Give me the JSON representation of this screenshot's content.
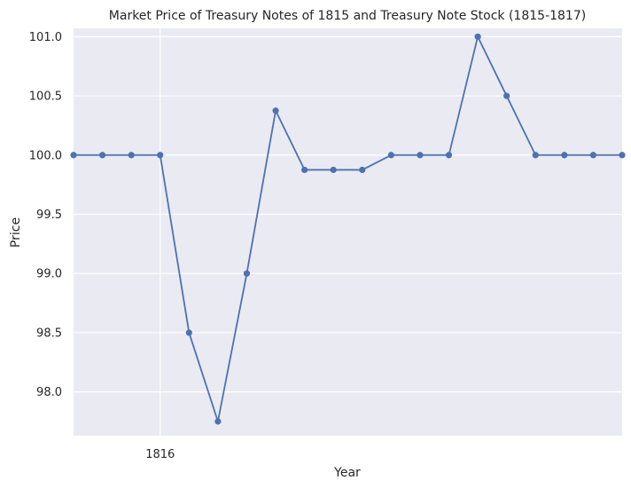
{
  "chart_data": {
    "type": "line",
    "title": "Market Price of Treasury Notes of 1815 and Treasury Note Stock (1815-1817)",
    "xlabel": "Year",
    "ylabel": "Price",
    "x_tick_labels": [
      {
        "x": 3,
        "label": "1816"
      }
    ],
    "y_ticks": [
      98.0,
      98.5,
      99.0,
      99.5,
      100.0,
      100.5,
      101.0
    ],
    "y_tick_labels": [
      "98.0",
      "98.5",
      "99.0",
      "99.5",
      "100.0",
      "100.5",
      "101.0"
    ],
    "xlim": [
      0,
      19
    ],
    "ylim": [
      97.63,
      101.07
    ],
    "grid": true,
    "series": [
      {
        "color": "#4c72b0",
        "marker": "circle",
        "x": [
          0,
          1,
          2,
          3,
          4,
          5,
          6,
          7,
          8,
          9,
          10,
          11,
          12,
          13,
          14,
          15,
          16,
          17,
          18,
          19
        ],
        "values": [
          100.0,
          100.0,
          100.0,
          100.0,
          98.5,
          97.75,
          99.0,
          100.375,
          99.875,
          99.875,
          99.875,
          100.0,
          100.0,
          100.0,
          101.0,
          100.5,
          100.0,
          100.0,
          100.0,
          100.0
        ]
      }
    ]
  },
  "colors": {
    "plot_background": "#eaeaf2",
    "grid": "#ffffff",
    "line": "#4c72b0",
    "text": "#262626"
  }
}
